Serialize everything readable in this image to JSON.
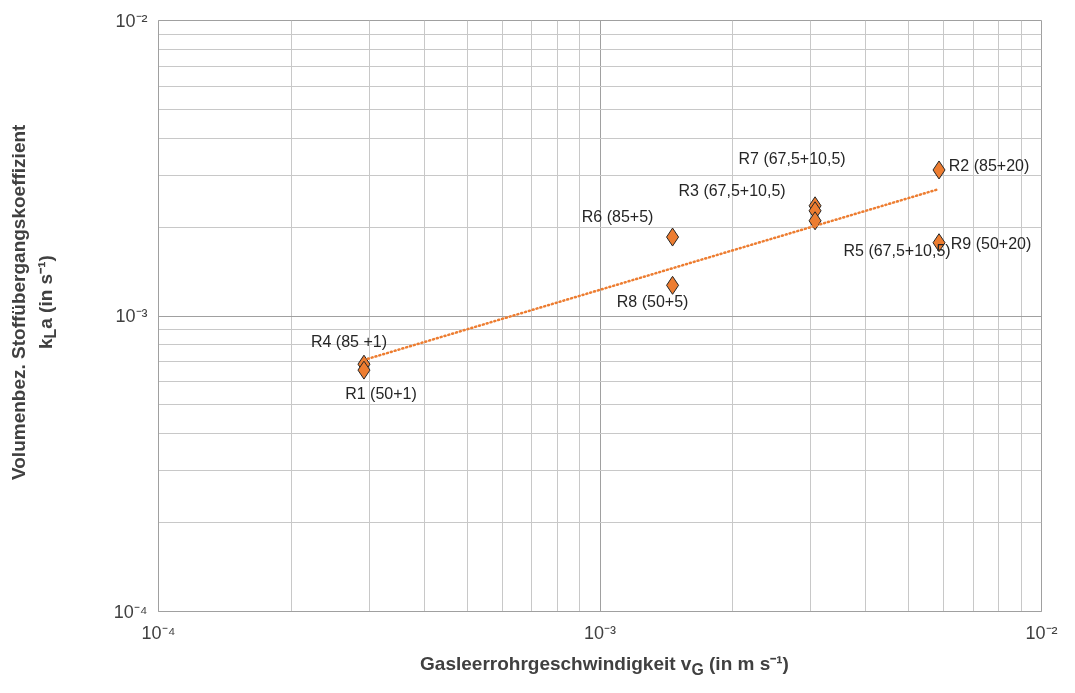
{
  "chart_data": {
    "type": "scatter",
    "xlabel": "Gasleerrohrgeschwindigkeit v$_{G}$ (in m s⁻¹)",
    "ylabel": "Volumenbez. Stoffübergangskoeffizient\nk$_{L}$a (in s⁻¹)",
    "log": "xy",
    "grid": true,
    "xlim": [
      0.0001,
      0.01
    ],
    "ylim": [
      0.0001,
      0.01
    ],
    "xticks": [
      {
        "value": 0.0001,
        "label": "10⁻⁴"
      },
      {
        "value": 0.001,
        "label": "10⁻³"
      },
      {
        "value": 0.01,
        "label": "10⁻²"
      }
    ],
    "yticks": [
      {
        "value": 0.0001,
        "label": "10⁻⁴"
      },
      {
        "value": 0.001,
        "label": "10⁻³"
      },
      {
        "value": 0.01,
        "label": "10⁻²"
      }
    ],
    "series": [
      {
        "color": "#ed7d31",
        "marker": "diamond",
        "x": [
          0.000292,
          0.000292,
          0.00146,
          0.00146,
          0.00307,
          0.00307,
          0.00307,
          0.00586,
          0.00586
        ],
        "values": [
          0.000687,
          0.000656,
          0.00185,
          0.00127,
          0.00236,
          0.00227,
          0.0021,
          0.00312,
          0.00177
        ]
      },
      {
        "type": "line",
        "color": "#ed7d31",
        "line_style": "dotted",
        "x": [
          0.000292,
          0.00586
        ],
        "values": [
          0.00071,
          0.00269
        ]
      }
    ],
    "annotations": [
      {
        "text": "R4 (85 +1)",
        "x": 0.000292,
        "y": 0.000687
      },
      {
        "text": "R1 (50+1)",
        "x": 0.000292,
        "y": 0.000656
      },
      {
        "text": "R6 (85+5)",
        "x": 0.00146,
        "y": 0.00185
      },
      {
        "text": "R8 (50+5)",
        "x": 0.00146,
        "y": 0.00127
      },
      {
        "text": "R7 (67,5+10,5)",
        "x": 0.00307,
        "y": 0.00236
      },
      {
        "text": "R3 (67,5+10,5)",
        "x": 0.00307,
        "y": 0.00227
      },
      {
        "text": "R5 (67,5+10,5)",
        "x": 0.00307,
        "y": 0.0021
      },
      {
        "text": "R2 (85+20)",
        "x": 0.00586,
        "y": 0.00312
      },
      {
        "text": "R9 (50+20)",
        "x": 0.00586,
        "y": 0.00177
      }
    ]
  }
}
